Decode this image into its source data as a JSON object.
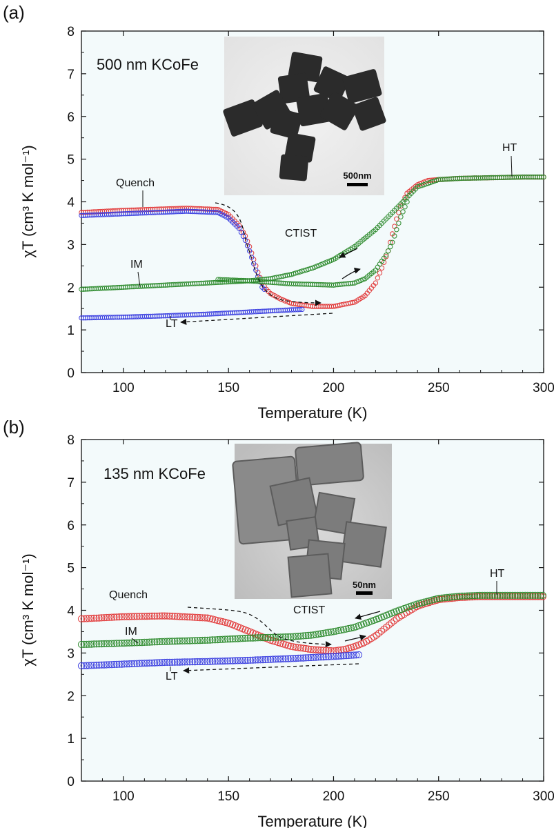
{
  "colors": {
    "plot_bg": "#f3fafb",
    "quench": "#e23a3a",
    "lt": "#3b3fe0",
    "im": "#2e8b2e",
    "axis": "#111111"
  },
  "chart_data": [
    {
      "type": "scatter",
      "panel_label": "(a)",
      "sample_label": "500 nm KCoFe",
      "xlabel": "Temperature (K)",
      "ylabel": "χT (cm³ K mol⁻¹)",
      "xlim": [
        80,
        300
      ],
      "ylim": [
        0,
        8
      ],
      "xticks": [
        "100",
        "150",
        "200",
        "250",
        "300"
      ],
      "yticks": [
        "0",
        "1",
        "2",
        "3",
        "4",
        "5",
        "6",
        "7",
        "8"
      ],
      "annotations": {
        "quench": "Quench",
        "im": "IM",
        "lt": "LT",
        "ctist": "CTIST",
        "ht": "HT"
      },
      "inset_scale_label": "500nm",
      "series": [
        {
          "name": "Quench",
          "color_key": "quench",
          "x": [
            80,
            100,
            130,
            145,
            150,
            155,
            158,
            160,
            162,
            164,
            166,
            168,
            170,
            175,
            180,
            190,
            200,
            210,
            215,
            220,
            223,
            226,
            228,
            230,
            232,
            235,
            240,
            245,
            250,
            260,
            270,
            280,
            290,
            300
          ],
          "y": [
            3.75,
            3.8,
            3.85,
            3.82,
            3.7,
            3.45,
            3.2,
            2.95,
            2.65,
            2.35,
            2.1,
            1.95,
            1.85,
            1.72,
            1.62,
            1.55,
            1.55,
            1.65,
            1.8,
            2.1,
            2.45,
            2.85,
            3.25,
            3.6,
            3.9,
            4.2,
            4.4,
            4.5,
            4.52,
            4.55,
            4.56,
            4.57,
            4.58,
            4.58
          ]
        },
        {
          "name": "LT",
          "color_key": "lt",
          "x": [
            80,
            100,
            120,
            140,
            160,
            180,
            185
          ],
          "y": [
            1.28,
            1.3,
            1.33,
            1.37,
            1.42,
            1.47,
            1.48
          ]
        },
        {
          "name": "LT (quenched)",
          "color_key": "lt",
          "x": [
            80,
            100,
            130,
            145,
            150,
            155,
            158,
            160,
            162,
            164,
            166,
            167
          ],
          "y": [
            3.68,
            3.72,
            3.78,
            3.75,
            3.62,
            3.38,
            3.1,
            2.85,
            2.55,
            2.25,
            2.0,
            1.95
          ]
        },
        {
          "name": "IM",
          "color_key": "im",
          "x": [
            80,
            100,
            120,
            140,
            160,
            170,
            180,
            190,
            200,
            210,
            220,
            230,
            240,
            250,
            260,
            270,
            280,
            290,
            300
          ],
          "y": [
            1.95,
            2.0,
            2.05,
            2.1,
            2.15,
            2.2,
            2.3,
            2.45,
            2.65,
            2.95,
            3.35,
            3.85,
            4.35,
            4.52,
            4.55,
            4.56,
            4.57,
            4.58,
            4.58
          ]
        },
        {
          "name": "IM (heating)",
          "color_key": "im",
          "x": [
            145,
            160,
            180,
            200,
            210,
            215,
            220,
            225,
            228,
            230,
            232,
            235
          ],
          "y": [
            2.18,
            2.15,
            2.08,
            2.05,
            2.1,
            2.2,
            2.4,
            2.75,
            3.05,
            3.35,
            3.65,
            4.0
          ]
        }
      ]
    },
    {
      "type": "scatter",
      "panel_label": "(b)",
      "sample_label": "135 nm KCoFe",
      "xlabel": "Temperature (K)",
      "ylabel": "χT (cm³ K mol⁻¹)",
      "xlim": [
        80,
        300
      ],
      "ylim": [
        0,
        8
      ],
      "xticks": [
        "100",
        "150",
        "200",
        "250",
        "300"
      ],
      "yticks": [
        "0",
        "1",
        "2",
        "3",
        "4",
        "5",
        "6",
        "7",
        "8"
      ],
      "annotations": {
        "quench": "Quench",
        "im": "IM",
        "lt": "LT",
        "ctist": "CTIST",
        "ht": "HT"
      },
      "inset_scale_label": "50nm",
      "series": [
        {
          "name": "Quench",
          "color_key": "quench",
          "x": [
            80,
            100,
            120,
            140,
            150,
            160,
            170,
            180,
            190,
            200,
            205,
            210,
            215,
            220,
            225,
            230,
            240,
            250,
            260,
            270,
            280,
            290,
            300
          ],
          "y": [
            3.8,
            3.85,
            3.87,
            3.82,
            3.7,
            3.5,
            3.3,
            3.15,
            3.08,
            3.05,
            3.08,
            3.15,
            3.25,
            3.4,
            3.6,
            3.8,
            4.1,
            4.25,
            4.3,
            4.32,
            4.32,
            4.32,
            4.32
          ]
        },
        {
          "name": "LT",
          "color_key": "lt",
          "x": [
            80,
            100,
            120,
            140,
            160,
            180,
            200,
            213
          ],
          "y": [
            2.7,
            2.74,
            2.78,
            2.8,
            2.83,
            2.87,
            2.92,
            2.96
          ]
        },
        {
          "name": "IM",
          "color_key": "im",
          "x": [
            80,
            100,
            120,
            140,
            160,
            180,
            190,
            200,
            210,
            220,
            230,
            240,
            250,
            260,
            270,
            280,
            290,
            300
          ],
          "y": [
            3.2,
            3.23,
            3.27,
            3.3,
            3.35,
            3.38,
            3.42,
            3.5,
            3.6,
            3.78,
            3.98,
            4.15,
            4.28,
            4.33,
            4.35,
            4.35,
            4.35,
            4.35
          ]
        }
      ]
    }
  ]
}
